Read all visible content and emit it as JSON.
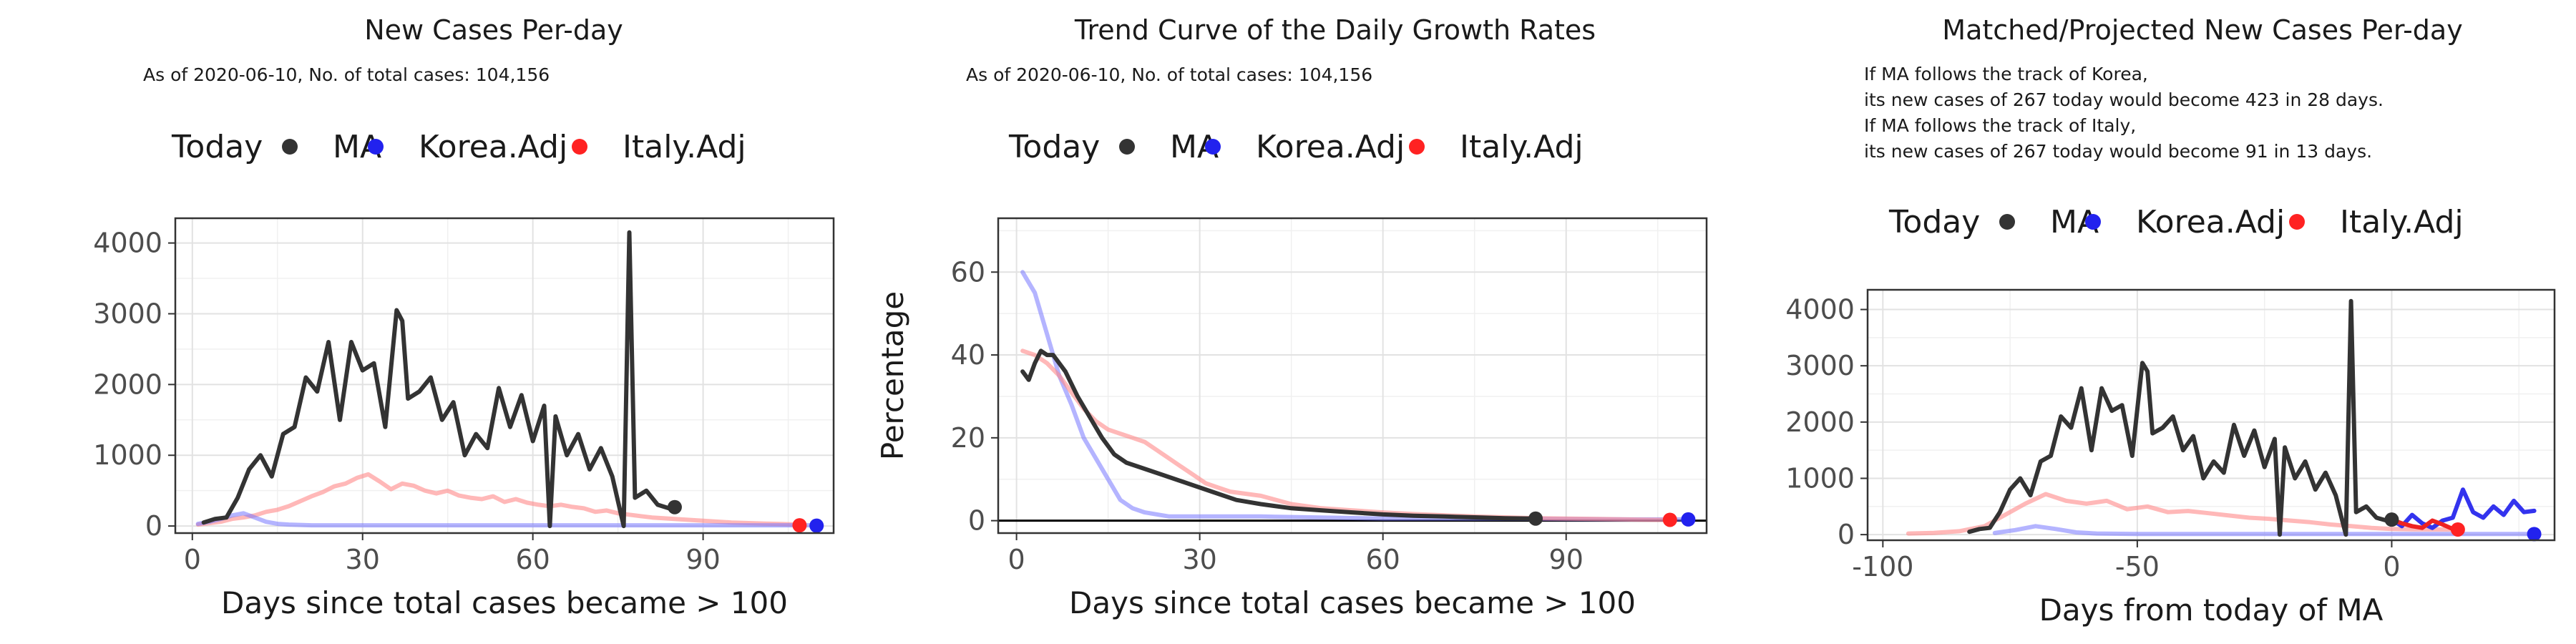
{
  "legend": {
    "title": "Today",
    "entries": [
      "MA",
      "Korea.Adj",
      "Italy.Adj"
    ]
  },
  "colors": {
    "MA": "#333333",
    "Korea": "#7777ff",
    "Italy": "#ff8888",
    "MA_dot": "#333333",
    "Korea_dot": "#2222ee",
    "Italy_dot": "#ff2222",
    "MA_proj": "#111111",
    "Korea_proj": "#3333ee",
    "Italy_proj": "#ee2222"
  },
  "chart_data": [
    {
      "type": "line",
      "title": "New Cases Per-day",
      "subtitle": "As of 2020-06-10, No. of total cases: 104,156",
      "xlabel": "Days since total cases became > 100",
      "ylabel": "",
      "xlim": [
        -3,
        113
      ],
      "ylim": [
        -100,
        4350
      ],
      "xticks": [
        0,
        30,
        60,
        90
      ],
      "yticks": [
        0,
        1000,
        2000,
        3000,
        4000
      ],
      "grid": true,
      "legend_position": "top",
      "series": [
        {
          "name": "Italy.Adj",
          "x": [
            1,
            3,
            5,
            7,
            9,
            11,
            13,
            15,
            17,
            19,
            21,
            23,
            25,
            27,
            29,
            31,
            33,
            35,
            37,
            39,
            41,
            43,
            45,
            47,
            49,
            51,
            53,
            55,
            57,
            59,
            61,
            63,
            65,
            67,
            69,
            71,
            73,
            75,
            77,
            79,
            81,
            83,
            85,
            87,
            89,
            91,
            93,
            95,
            97,
            99,
            101,
            103,
            105,
            107
          ],
          "y": [
            20,
            40,
            60,
            100,
            120,
            150,
            200,
            230,
            280,
            350,
            420,
            480,
            560,
            600,
            680,
            730,
            630,
            520,
            600,
            570,
            500,
            460,
            500,
            430,
            400,
            380,
            420,
            340,
            380,
            330,
            300,
            280,
            300,
            270,
            250,
            200,
            220,
            180,
            160,
            140,
            120,
            110,
            100,
            90,
            80,
            70,
            60,
            50,
            45,
            40,
            35,
            30,
            25,
            20
          ]
        },
        {
          "name": "Korea.Adj",
          "x": [
            1,
            3,
            5,
            7,
            9,
            11,
            13,
            15,
            17,
            19,
            21,
            23,
            25,
            30,
            40,
            50,
            60,
            70,
            80,
            90,
            100,
            110
          ],
          "y": [
            30,
            60,
            100,
            150,
            180,
            120,
            60,
            30,
            20,
            15,
            10,
            10,
            10,
            10,
            10,
            10,
            10,
            10,
            10,
            10,
            10,
            10
          ]
        },
        {
          "name": "MA",
          "x": [
            2,
            4,
            6,
            8,
            10,
            12,
            14,
            16,
            18,
            20,
            22,
            24,
            26,
            28,
            30,
            32,
            34,
            36,
            37,
            38,
            40,
            42,
            44,
            46,
            48,
            50,
            52,
            54,
            56,
            58,
            60,
            62,
            63,
            64,
            66,
            68,
            70,
            72,
            74,
            76,
            77,
            78,
            80,
            82,
            84
          ],
          "y": [
            50,
            100,
            120,
            400,
            800,
            1000,
            700,
            1300,
            1400,
            2100,
            1900,
            2600,
            1500,
            2600,
            2200,
            2300,
            1400,
            3050,
            2900,
            1800,
            1900,
            2100,
            1500,
            1750,
            1000,
            1300,
            1100,
            1950,
            1400,
            1850,
            1200,
            1700,
            0,
            1550,
            1000,
            1300,
            800,
            1100,
            700,
            0,
            4150,
            400,
            500,
            300,
            250
          ]
        }
      ],
      "today_points": [
        {
          "name": "MA",
          "x": 85,
          "y": 267
        },
        {
          "name": "Korea.Adj",
          "x": 110,
          "y": 5
        },
        {
          "name": "Italy.Adj",
          "x": 107,
          "y": 10
        }
      ]
    },
    {
      "type": "line",
      "title": "Trend Curve of the Daily Growth Rates",
      "subtitle": "As of 2020-06-10, No. of total cases: 104,156",
      "xlabel": "Days since total cases became > 100",
      "ylabel": "Percentage",
      "xlim": [
        -3,
        113
      ],
      "ylim": [
        -3,
        73
      ],
      "xticks": [
        0,
        30,
        60,
        90
      ],
      "yticks": [
        0,
        20,
        40,
        60
      ],
      "hline": 0,
      "grid": true,
      "legend_position": "top",
      "series": [
        {
          "name": "Korea.Adj",
          "x": [
            1,
            3,
            5,
            7,
            9,
            11,
            13,
            15,
            17,
            19,
            21,
            25,
            30,
            40,
            60,
            80,
            100,
            110
          ],
          "y": [
            60,
            55,
            45,
            35,
            28,
            20,
            15,
            10,
            5,
            3,
            2,
            1,
            1,
            1,
            0.5,
            0.5,
            0.3,
            0.3
          ]
        },
        {
          "name": "Italy.Adj",
          "x": [
            1,
            3,
            5,
            7,
            9,
            11,
            13,
            15,
            17,
            19,
            21,
            23,
            25,
            27,
            29,
            31,
            33,
            35,
            40,
            45,
            50,
            55,
            60,
            65,
            70,
            75,
            80,
            85,
            90,
            95,
            100,
            105,
            107
          ],
          "y": [
            41,
            40,
            38,
            35,
            31,
            27,
            24,
            22,
            21,
            20,
            19,
            17,
            15,
            13,
            11,
            9,
            8,
            7,
            6,
            4,
            3,
            2.5,
            2,
            1.6,
            1.3,
            1,
            0.8,
            0.6,
            0.5,
            0.4,
            0.3,
            0.2,
            0.2
          ]
        },
        {
          "name": "MA",
          "x": [
            1,
            2,
            3,
            4,
            5,
            6,
            8,
            10,
            12,
            14,
            16,
            18,
            20,
            24,
            28,
            32,
            36,
            40,
            45,
            50,
            55,
            60,
            65,
            70,
            75,
            80,
            85
          ],
          "y": [
            36,
            34,
            38,
            41,
            40,
            40,
            36,
            30,
            25,
            20,
            16,
            14,
            13,
            11,
            9,
            7,
            5,
            4,
            3,
            2.5,
            2,
            1.5,
            1.2,
            1,
            0.8,
            0.6,
            0.5
          ]
        }
      ],
      "today_points": [
        {
          "name": "MA",
          "x": 85,
          "y": 0.5
        },
        {
          "name": "Korea.Adj",
          "x": 110,
          "y": 0.3
        },
        {
          "name": "Italy.Adj",
          "x": 107,
          "y": 0.2
        }
      ]
    },
    {
      "type": "line",
      "title": "Matched/Projected New Cases Per-day",
      "annotations": [
        "If MA follows the track of Korea,",
        "its new cases of 267 today would become 423 in 28 days.",
        "If MA follows the track of Italy,",
        "its new cases of 267 today would become 91 in 13 days."
      ],
      "xlabel": "Days from today of MA",
      "ylabel": "",
      "xlim": [
        -103,
        32
      ],
      "ylim": [
        -100,
        4350
      ],
      "xticks": [
        -100,
        -50,
        0
      ],
      "yticks": [
        0,
        1000,
        2000,
        3000,
        4000
      ],
      "grid": true,
      "legend_position": "top",
      "series": [
        {
          "name": "Italy.Adj",
          "x": [
            -95,
            -90,
            -85,
            -80,
            -76,
            -72,
            -68,
            -64,
            -60,
            -56,
            -52,
            -48,
            -44,
            -40,
            -36,
            -32,
            -28,
            -24,
            -20,
            -16,
            -12,
            -8,
            -4,
            0,
            4,
            8,
            12,
            13
          ],
          "y": [
            20,
            30,
            60,
            150,
            350,
            550,
            720,
            600,
            550,
            600,
            450,
            500,
            400,
            420,
            380,
            340,
            300,
            280,
            250,
            220,
            180,
            150,
            120,
            100,
            95,
            92,
            91,
            91
          ]
        },
        {
          "name": "Korea.Adj",
          "x": [
            -78,
            -74,
            -70,
            -66,
            -62,
            -58,
            -50,
            -40,
            -30,
            -20,
            -10,
            0,
            28
          ],
          "y": [
            30,
            80,
            150,
            100,
            40,
            20,
            10,
            10,
            10,
            10,
            10,
            10,
            10
          ]
        },
        {
          "name": "MA",
          "x": [
            -83,
            -81,
            -79,
            -77,
            -75,
            -73,
            -71,
            -69,
            -67,
            -65,
            -63,
            -61,
            -59,
            -57,
            -55,
            -53,
            -51,
            -49,
            -48,
            -47,
            -45,
            -43,
            -41,
            -39,
            -37,
            -35,
            -33,
            -31,
            -29,
            -27,
            -25,
            -23,
            -22,
            -21,
            -19,
            -17,
            -15,
            -13,
            -11,
            -9,
            -8,
            -7,
            -5,
            -3,
            -1,
            0
          ],
          "y": [
            50,
            100,
            120,
            400,
            800,
            1000,
            700,
            1300,
            1400,
            2100,
            1900,
            2600,
            1500,
            2600,
            2200,
            2300,
            1400,
            3050,
            2900,
            1800,
            1900,
            2100,
            1500,
            1750,
            1000,
            1300,
            1100,
            1950,
            1400,
            1850,
            1200,
            1700,
            0,
            1550,
            1000,
            1300,
            800,
            1100,
            700,
            0,
            4150,
            400,
            500,
            300,
            250,
            267
          ]
        },
        {
          "name": "Korea projection",
          "x": [
            0,
            2,
            4,
            6,
            8,
            10,
            12,
            14,
            16,
            18,
            20,
            22,
            24,
            26,
            28
          ],
          "y": [
            267,
            150,
            350,
            200,
            120,
            250,
            300,
            800,
            400,
            300,
            500,
            350,
            600,
            400,
            423
          ]
        },
        {
          "name": "Italy projection",
          "x": [
            0,
            2,
            4,
            6,
            8,
            10,
            12,
            13
          ],
          "y": [
            267,
            200,
            150,
            120,
            250,
            180,
            100,
            91
          ]
        }
      ],
      "today_points": [
        {
          "name": "MA",
          "x": 0,
          "y": 267
        },
        {
          "name": "Korea.Adj",
          "x": 28,
          "y": 10
        },
        {
          "name": "Italy.Adj",
          "x": 13,
          "y": 91
        }
      ]
    }
  ]
}
